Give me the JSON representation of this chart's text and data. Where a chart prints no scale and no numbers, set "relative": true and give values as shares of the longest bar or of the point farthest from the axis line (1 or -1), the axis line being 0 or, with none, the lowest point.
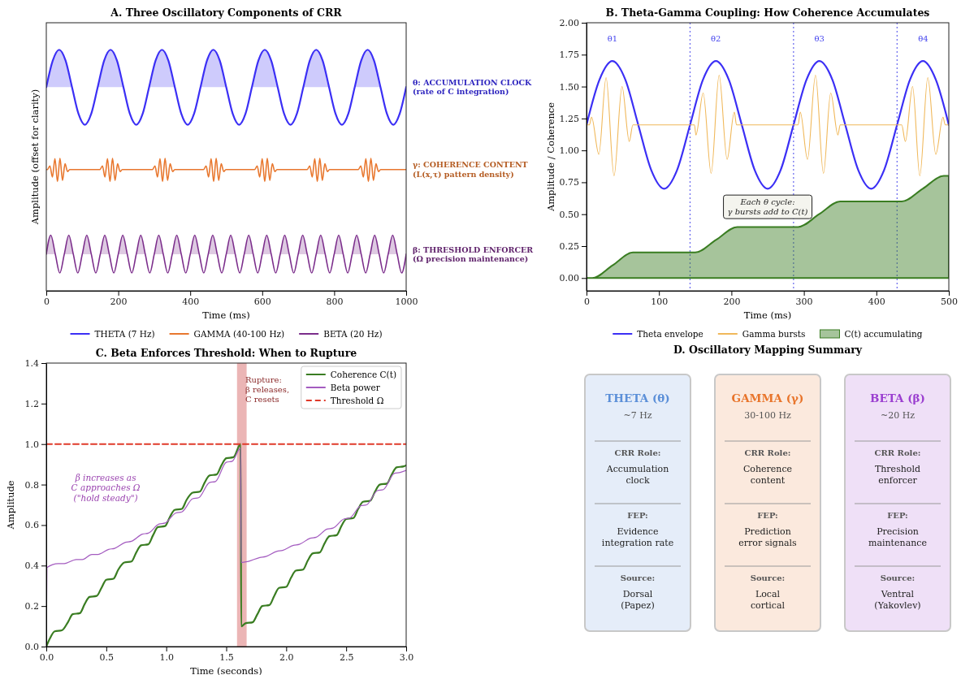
{
  "chart_data": [
    {
      "type": "line",
      "title": "A. Three Oscillatory Components of CRR",
      "xlabel": "Time (ms)",
      "ylabel": "Amplitude (offset for clarity)",
      "relative": true,
      "xlim": [
        0,
        1000
      ],
      "xticks": [
        0,
        200,
        400,
        600,
        800,
        1000
      ],
      "legend": "bottom",
      "series": [
        {
          "name": "THETA (7 Hz)",
          "color": "#3b2ff5",
          "x": [
            0,
            17.9,
            35.7,
            53.6,
            71.4,
            89.3,
            107.1,
            125,
            142.9,
            160.7,
            178.6,
            196.4,
            214.3,
            232.1,
            250,
            267.9,
            285.7,
            303.6,
            321.4,
            339.3,
            357.1,
            375,
            392.9,
            410.7,
            428.6,
            446.4,
            464.3,
            482.1,
            500,
            517.9,
            535.7,
            553.6,
            571.4,
            589.3,
            607.1,
            625,
            642.9,
            660.7,
            678.6,
            696.4,
            714.3,
            732.1,
            750,
            767.9,
            785.7,
            803.6,
            821.4,
            839.3,
            857.1,
            875,
            892.9,
            910.7,
            928.6,
            946.4,
            964.3,
            982.1,
            1000
          ],
          "values": [
            0.845,
            0.955,
            1,
            0.955,
            0.845,
            0.735,
            0.689,
            0.735,
            0.845,
            0.955,
            1,
            0.955,
            0.845,
            0.735,
            0.689,
            0.735,
            0.845,
            0.955,
            1,
            0.955,
            0.845,
            0.735,
            0.689,
            0.735,
            0.845,
            0.955,
            1,
            0.955,
            0.845,
            0.735,
            0.689,
            0.735,
            0.845,
            0.955,
            1,
            0.955,
            0.845,
            0.735,
            0.689,
            0.735,
            0.845,
            0.955,
            1,
            0.955,
            0.845,
            0.735,
            0.689,
            0.735,
            0.845,
            0.955,
            1,
            0.955,
            0.845,
            0.735,
            0.689,
            0.735,
            0.845
          ],
          "upper": [
            0.845,
            0.955,
            1,
            0.955,
            0.845,
            0.845,
            0.845,
            0.845,
            0.845,
            0.955,
            1,
            0.955,
            0.845,
            0.845,
            0.845,
            0.845,
            0.845,
            0.955,
            1,
            0.955,
            0.845,
            0.845,
            0.845,
            0.845,
            0.845,
            0.955,
            1,
            0.955,
            0.845,
            0.845,
            0.845,
            0.845,
            0.845,
            0.955,
            1,
            0.955,
            0.845,
            0.845,
            0.845,
            0.845,
            0.845,
            0.955,
            1,
            0.955,
            0.845,
            0.845,
            0.845,
            0.845,
            0.845,
            0.955,
            1,
            0.955,
            0.845,
            0.845,
            0.845,
            0.845,
            0.845
          ],
          "lower": [
            0.845,
            0.845,
            0.845,
            0.845,
            0.845,
            0.845,
            0.845,
            0.845,
            0.845,
            0.845,
            0.845,
            0.845,
            0.845,
            0.845,
            0.845,
            0.845,
            0.845,
            0.845,
            0.845,
            0.845,
            0.845,
            0.845,
            0.845,
            0.845,
            0.845,
            0.845,
            0.845,
            0.845,
            0.845,
            0.845,
            0.845,
            0.845,
            0.845,
            0.845,
            0.845,
            0.845,
            0.845,
            0.845,
            0.845,
            0.845,
            0.845,
            0.845,
            0.845,
            0.845,
            0.845,
            0.845,
            0.845,
            0.845,
            0.845,
            0.845,
            0.845,
            0.845,
            0.845,
            0.845,
            0.845,
            0.845,
            0.845
          ]
        },
        {
          "name": "GAMMA (40-100 Hz)",
          "color": "#e8772e",
          "x": [
            0,
            3,
            10,
            17,
            24,
            31,
            38,
            45,
            52,
            59,
            65,
            149,
            156,
            163,
            170,
            177,
            184,
            191,
            198,
            205,
            211,
            295,
            302,
            309,
            316,
            323,
            330,
            337,
            344,
            351,
            357,
            437,
            444,
            451,
            458,
            465,
            472,
            479,
            486,
            493,
            499,
            579,
            586,
            593,
            600,
            607,
            614,
            621,
            628,
            635,
            641,
            725,
            732,
            739,
            746,
            753,
            760,
            767,
            774,
            781,
            787,
            867,
            874,
            881,
            888,
            895,
            902,
            909,
            916,
            923,
            929,
            1000
          ],
          "values": [
            0.503,
            0.503,
            0.518,
            0.472,
            0.548,
            0.453,
            0.55,
            0.458,
            0.527,
            0.495,
            0.503,
            0.503,
            0.518,
            0.472,
            0.548,
            0.453,
            0.55,
            0.458,
            0.527,
            0.495,
            0.503,
            0.503,
            0.518,
            0.472,
            0.548,
            0.453,
            0.55,
            0.458,
            0.527,
            0.495,
            0.503,
            0.503,
            0.518,
            0.472,
            0.548,
            0.453,
            0.55,
            0.458,
            0.527,
            0.495,
            0.503,
            0.503,
            0.518,
            0.472,
            0.548,
            0.453,
            0.55,
            0.458,
            0.527,
            0.495,
            0.503,
            0.503,
            0.518,
            0.472,
            0.548,
            0.453,
            0.55,
            0.458,
            0.527,
            0.495,
            0.503,
            0.503,
            0.518,
            0.472,
            0.548,
            0.453,
            0.55,
            0.458,
            0.527,
            0.495,
            0.503,
            0.503
          ]
        },
        {
          "name": "BETA (20 Hz)",
          "color": "#7b2d8b",
          "x": [
            0,
            12.5,
            25,
            37.5,
            50,
            62.5,
            75,
            87.5,
            100,
            112.5,
            125,
            137.5,
            150,
            162.5,
            175,
            187.5,
            200,
            212.5,
            225,
            237.5,
            250,
            262.5,
            275,
            287.5,
            300,
            312.5,
            325,
            337.5,
            350,
            362.5,
            375,
            387.5,
            400,
            412.5,
            425,
            437.5,
            450,
            462.5,
            475,
            487.5,
            500,
            512.5,
            525,
            537.5,
            550,
            562.5,
            575,
            587.5,
            600,
            612.5,
            625,
            637.5,
            650,
            662.5,
            675,
            687.5,
            700,
            712.5,
            725,
            737.5,
            750,
            762.5,
            775,
            787.5,
            800,
            812.5,
            825,
            837.5,
            850,
            862.5,
            875,
            887.5,
            900,
            912.5,
            925,
            937.5,
            950,
            962.5,
            975,
            987.5,
            1000
          ],
          "values": [
            0.152,
            0.231,
            0.152,
            0.074,
            0.152,
            0.231,
            0.152,
            0.074,
            0.152,
            0.231,
            0.152,
            0.074,
            0.152,
            0.231,
            0.152,
            0.074,
            0.152,
            0.231,
            0.152,
            0.074,
            0.152,
            0.231,
            0.152,
            0.074,
            0.152,
            0.231,
            0.152,
            0.074,
            0.152,
            0.231,
            0.152,
            0.074,
            0.152,
            0.231,
            0.152,
            0.074,
            0.152,
            0.231,
            0.152,
            0.074,
            0.152,
            0.231,
            0.152,
            0.074,
            0.152,
            0.231,
            0.152,
            0.074,
            0.152,
            0.231,
            0.152,
            0.074,
            0.152,
            0.231,
            0.152,
            0.074,
            0.152,
            0.231,
            0.152,
            0.074,
            0.152,
            0.231,
            0.152,
            0.074,
            0.152,
            0.231,
            0.152,
            0.074,
            0.152,
            0.231,
            0.152,
            0.074,
            0.152,
            0.231,
            0.152,
            0.074,
            0.152,
            0.231,
            0.152,
            0.074,
            0.152
          ],
          "upper": [
            0.152,
            0.231,
            0.152,
            0.152,
            0.152,
            0.231,
            0.152,
            0.152,
            0.152,
            0.231,
            0.152,
            0.152,
            0.152,
            0.231,
            0.152,
            0.152,
            0.152,
            0.231,
            0.152,
            0.152,
            0.152,
            0.231,
            0.152,
            0.152,
            0.152,
            0.231,
            0.152,
            0.152,
            0.152,
            0.231,
            0.152,
            0.152,
            0.152,
            0.231,
            0.152,
            0.152,
            0.152,
            0.231,
            0.152,
            0.152,
            0.152,
            0.231,
            0.152,
            0.152,
            0.152,
            0.231,
            0.152,
            0.152,
            0.152,
            0.231,
            0.152,
            0.152,
            0.152,
            0.231,
            0.152,
            0.152,
            0.152,
            0.231,
            0.152,
            0.152,
            0.152,
            0.231,
            0.152,
            0.152,
            0.152,
            0.231,
            0.152,
            0.152,
            0.152,
            0.231,
            0.152,
            0.152,
            0.152,
            0.231,
            0.152,
            0.152,
            0.152,
            0.231,
            0.152,
            0.152,
            0.152
          ],
          "lower": [
            0.152,
            0.152,
            0.152,
            0.152,
            0.152,
            0.152,
            0.152,
            0.152,
            0.152,
            0.152,
            0.152,
            0.152,
            0.152,
            0.152,
            0.152,
            0.152,
            0.152,
            0.152,
            0.152,
            0.152,
            0.152,
            0.152,
            0.152,
            0.152,
            0.152,
            0.152,
            0.152,
            0.152,
            0.152,
            0.152,
            0.152,
            0.152,
            0.152,
            0.152,
            0.152,
            0.152,
            0.152,
            0.152,
            0.152,
            0.152,
            0.152,
            0.152,
            0.152,
            0.152,
            0.152,
            0.152,
            0.152,
            0.152,
            0.152,
            0.152,
            0.152,
            0.152,
            0.152,
            0.152,
            0.152,
            0.152,
            0.152,
            0.152,
            0.152,
            0.152,
            0.152,
            0.152,
            0.152,
            0.152,
            0.152,
            0.152,
            0.152,
            0.152,
            0.152,
            0.152,
            0.152,
            0.152,
            0.152,
            0.152,
            0.152,
            0.152,
            0.152,
            0.152,
            0.152,
            0.152,
            0.152
          ]
        }
      ],
      "annotations": [
        "θ: ACCUMULATION CLOCK\n(rate of C integration)",
        "γ: COHERENCE CONTENT\n(L(x,τ) pattern density)",
        "β: THRESHOLD ENFORCER\n(Ω precision maintenance)"
      ]
    },
    {
      "type": "line",
      "title": "B. Theta-Gamma Coupling: How Coherence Accumulates",
      "xlabel": "Time (ms)",
      "ylabel": "Amplitude / Coherence",
      "xlim": [
        0,
        500
      ],
      "xticks": [
        0,
        100,
        200,
        300,
        400,
        500
      ],
      "ylim": [
        -0.1,
        2.0
      ],
      "yticks": [
        {
          "value": 0,
          "label": "0.00"
        },
        {
          "value": 0.25,
          "label": "0.25"
        },
        {
          "value": 0.5,
          "label": "0.50"
        },
        {
          "value": 0.75,
          "label": "0.75"
        },
        {
          "value": 1,
          "label": "1.00"
        },
        {
          "value": 1.25,
          "label": "1.25"
        },
        {
          "value": 1.5,
          "label": "1.50"
        },
        {
          "value": 1.75,
          "label": "1.75"
        },
        {
          "value": 2,
          "label": "2.00"
        }
      ],
      "legend": "bottom",
      "series": [
        {
          "name": "Theta envelope",
          "color": "#3b2ff5",
          "x": [
            0,
            17.9,
            35.7,
            53.6,
            71.4,
            89.3,
            107.1,
            125,
            142.9,
            160.7,
            178.6,
            196.4,
            214.3,
            232.1,
            250,
            267.9,
            285.7,
            303.6,
            321.4,
            339.3,
            357.1,
            375,
            392.9,
            410.7,
            428.6,
            446.4,
            464.3,
            482.1,
            500
          ],
          "values": [
            1.2,
            1.554,
            1.7,
            1.554,
            1.2,
            0.846,
            0.7,
            0.846,
            1.2,
            1.554,
            1.7,
            1.554,
            1.2,
            0.846,
            0.7,
            0.846,
            1.2,
            1.554,
            1.7,
            1.554,
            1.2,
            0.846,
            0.7,
            0.846,
            1.2,
            1.554,
            1.7,
            1.554,
            1.2
          ]
        },
        {
          "name": "Gamma bursts",
          "color": "#f0b85a",
          "x": [
            0,
            4,
            7,
            17,
            27,
            38,
            49,
            59,
            64,
            149,
            151,
            161,
            172,
            183,
            194,
            204,
            207,
            292,
            295,
            305,
            316,
            327,
            337,
            347,
            350,
            435,
            440,
            450,
            460,
            471,
            482,
            492,
            495,
            500
          ],
          "values": [
            1.2,
            1.2,
            1.26,
            0.97,
            1.57,
            0.8,
            1.5,
            1.07,
            1.2,
            1.2,
            1.12,
            1.45,
            0.82,
            1.59,
            0.93,
            1.3,
            1.2,
            1.2,
            1.3,
            0.93,
            1.59,
            0.82,
            1.45,
            1.12,
            1.2,
            1.2,
            1.07,
            1.5,
            0.8,
            1.57,
            0.97,
            1.26,
            1.2,
            1.2
          ]
        },
        {
          "name": "C(t) accumulating",
          "type": "area",
          "color": "#3a7d22",
          "x": [
            0,
            8,
            36,
            64,
            150,
            179,
            208,
            292,
            321,
            350,
            435,
            464,
            493,
            500
          ],
          "values": [
            0,
            0,
            0.1,
            0.2,
            0.2,
            0.3,
            0.4,
            0.4,
            0.5,
            0.6,
            0.6,
            0.7,
            0.8,
            0.8
          ]
        }
      ],
      "ref_lines": [
        {
          "axis": "x",
          "value": 0,
          "color": "#6666ee",
          "line_style": "dotted"
        },
        {
          "axis": "x",
          "value": 142.9,
          "color": "#6666ee",
          "line_style": "dotted"
        },
        {
          "axis": "x",
          "value": 285.7,
          "color": "#6666ee",
          "line_style": "dotted"
        },
        {
          "axis": "x",
          "value": 428.6,
          "color": "#6666ee",
          "line_style": "dotted"
        }
      ],
      "annotations": [
        "θ1",
        "θ2",
        "θ3",
        "θ4",
        "Each θ cycle:\nγ bursts add to C(t)"
      ]
    },
    {
      "type": "line",
      "title": "C. Beta Enforces Threshold: When to Rupture",
      "xlabel": "Time (seconds)",
      "ylabel": "Amplitude",
      "xlim": [
        0,
        3
      ],
      "xticks": [
        {
          "value": 0,
          "label": "0.0"
        },
        {
          "value": 0.5,
          "label": "0.5"
        },
        {
          "value": 1,
          "label": "1.0"
        },
        {
          "value": 1.5,
          "label": "1.5"
        },
        {
          "value": 2,
          "label": "2.0"
        },
        {
          "value": 2.5,
          "label": "2.5"
        },
        {
          "value": 3,
          "label": "3.0"
        }
      ],
      "ylim": [
        0,
        1.4
      ],
      "yticks": [
        {
          "value": 0,
          "label": "0.0"
        },
        {
          "value": 0.2,
          "label": "0.2"
        },
        {
          "value": 0.4,
          "label": "0.4"
        },
        {
          "value": 0.6,
          "label": "0.6"
        },
        {
          "value": 0.8,
          "label": "0.8"
        },
        {
          "value": 1,
          "label": "1.0"
        },
        {
          "value": 1.2,
          "label": "1.2"
        },
        {
          "value": 1.4,
          "label": "1.4"
        }
      ],
      "legend": "top right",
      "series": [
        {
          "name": "Coherence C(t)",
          "color": "#3a7d22",
          "x": [
            0,
            0.03,
            0.07,
            0.13,
            0.18,
            0.22,
            0.28,
            0.32,
            0.36,
            0.42,
            0.46,
            0.5,
            0.56,
            0.6,
            0.65,
            0.71,
            0.75,
            0.79,
            0.85,
            0.89,
            0.93,
            0.99,
            1.03,
            1.07,
            1.13,
            1.17,
            1.22,
            1.28,
            1.32,
            1.36,
            1.42,
            1.46,
            1.5,
            1.56,
            1.62,
            1.625,
            1.66,
            1.72,
            1.76,
            1.8,
            1.86,
            1.9,
            1.94,
            2.0,
            2.04,
            2.08,
            2.14,
            2.18,
            2.22,
            2.28,
            2.32,
            2.36,
            2.42,
            2.46,
            2.5,
            2.56,
            2.6,
            2.64,
            2.7,
            2.74,
            2.78,
            2.84,
            2.88,
            2.92,
            2.98,
            3.0
          ],
          "values": [
            0,
            0.04,
            0.075,
            0.08,
            0.12,
            0.16,
            0.165,
            0.21,
            0.245,
            0.25,
            0.29,
            0.33,
            0.335,
            0.38,
            0.415,
            0.42,
            0.465,
            0.5,
            0.505,
            0.55,
            0.59,
            0.595,
            0.64,
            0.675,
            0.68,
            0.725,
            0.76,
            0.765,
            0.81,
            0.845,
            0.85,
            0.895,
            0.93,
            0.935,
            1.0,
            0.1,
            0.115,
            0.12,
            0.16,
            0.2,
            0.205,
            0.25,
            0.29,
            0.295,
            0.34,
            0.375,
            0.38,
            0.425,
            0.46,
            0.465,
            0.51,
            0.545,
            0.55,
            0.595,
            0.63,
            0.635,
            0.68,
            0.715,
            0.72,
            0.765,
            0.8,
            0.805,
            0.85,
            0.885,
            0.89,
            0.895
          ]
        },
        {
          "name": "Beta power",
          "color": "#a45cc0",
          "x": [
            0,
            0.005,
            0.1,
            0.15,
            0.25,
            0.3,
            0.38,
            0.43,
            0.52,
            0.57,
            0.66,
            0.71,
            0.8,
            0.85,
            0.94,
            0.99,
            1.08,
            1.13,
            1.22,
            1.27,
            1.36,
            1.41,
            1.5,
            1.55,
            1.62,
            1.625,
            1.68,
            1.78,
            1.83,
            1.92,
            1.97,
            2.06,
            2.11,
            2.2,
            2.25,
            2.34,
            2.39,
            2.48,
            2.53,
            2.62,
            2.67,
            2.76,
            2.81,
            2.9,
            2.95,
            3.0
          ],
          "values": [
            0,
            0.39,
            0.41,
            0.41,
            0.43,
            0.43,
            0.455,
            0.455,
            0.48,
            0.485,
            0.515,
            0.52,
            0.555,
            0.56,
            0.605,
            0.61,
            0.66,
            0.665,
            0.73,
            0.735,
            0.81,
            0.815,
            0.91,
            0.915,
            0.98,
            0.415,
            0.42,
            0.44,
            0.445,
            0.47,
            0.475,
            0.5,
            0.505,
            0.535,
            0.54,
            0.58,
            0.585,
            0.63,
            0.635,
            0.695,
            0.7,
            0.77,
            0.775,
            0.855,
            0.86,
            0.87
          ]
        },
        {
          "name": "Threshold Ω",
          "color": "#e03a2a",
          "line_style": "dashed",
          "x": [
            0,
            3
          ],
          "values": [
            1,
            1
          ]
        }
      ],
      "bands": [
        {
          "axis": "x",
          "from": 1.59,
          "to": 1.67,
          "color": "#e8a8a8"
        }
      ],
      "annotations": [
        "β increases as\nC approaches Ω\n(\"hold steady\")",
        "Rupture:\nβ releases,\nC resets"
      ]
    },
    {
      "type": "other",
      "title": "D. Oscillatory Mapping Summary",
      "categories": [
        "THETA (θ)",
        "GAMMA (γ)",
        "BETA (β)"
      ],
      "colors": [
        "#5b8fd8",
        "#e8742a",
        "#9b3fd0"
      ],
      "annotations": [
        "~7 Hz",
        "CRR Role:",
        "Accumulation\nclock",
        "FEP:",
        "Evidence\nintegration rate",
        "Source:",
        "Dorsal\n(Papez)",
        "30-100 Hz",
        "CRR Role:",
        "Coherence\ncontent",
        "FEP:",
        "Prediction\nerror signals",
        "Source:",
        "Local\ncortical",
        "~20 Hz",
        "CRR Role:",
        "Threshold\nenforcer",
        "FEP:",
        "Precision\nmaintenance",
        "Source:",
        "Ventral\n(Yakovlev)"
      ]
    }
  ]
}
